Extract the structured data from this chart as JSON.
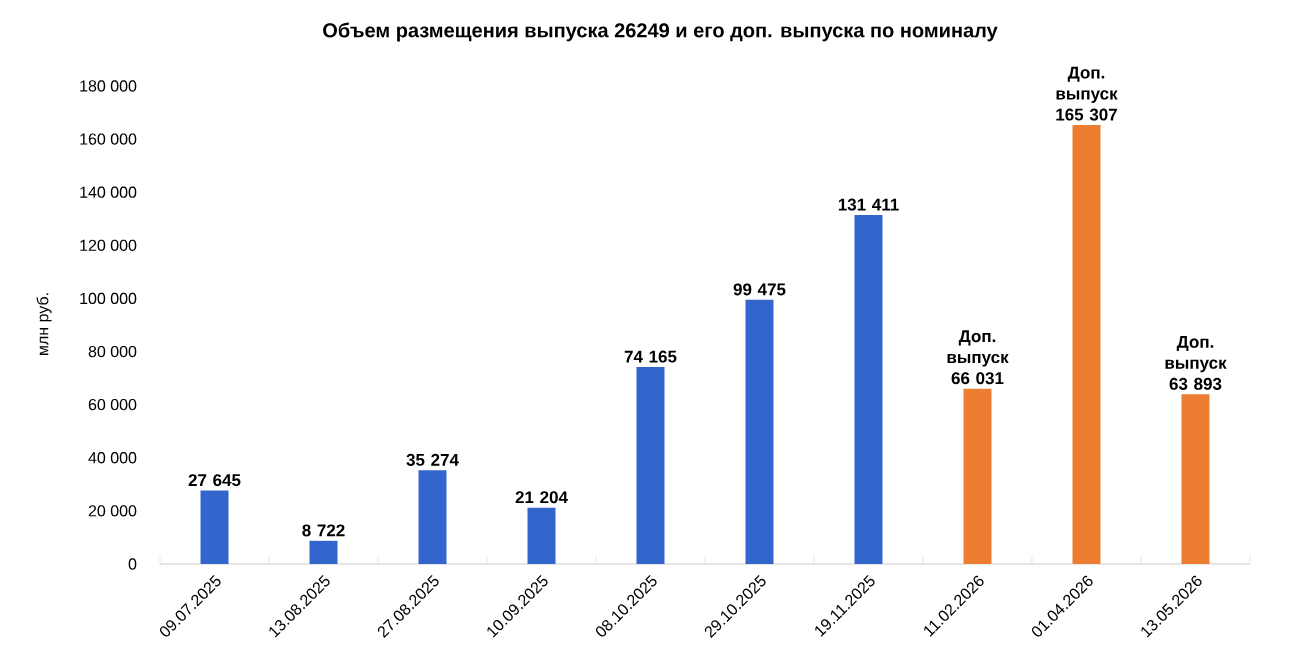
{
  "chart_data": {
    "type": "bar",
    "title": "Объем размещения выпуска 26249 и его доп. выпуска по номиналу",
    "ylabel": "млн руб.",
    "categories": [
      "09.07.2025",
      "13.08.2025",
      "27.08.2025",
      "10.09.2025",
      "08.10.2025",
      "29.10.2025",
      "19.11.2025",
      "11.02.2026",
      "01.04.2026",
      "13.05.2026"
    ],
    "values": [
      27645,
      8722,
      35274,
      21204,
      74165,
      99475,
      131411,
      66031,
      165307,
      63893
    ],
    "colors": [
      "#3366cc",
      "#3366cc",
      "#3366cc",
      "#3366cc",
      "#3366cc",
      "#3366cc",
      "#3366cc",
      "#ed7d31",
      "#ed7d31",
      "#ed7d31"
    ],
    "value_labels": [
      "27 645",
      "8 722",
      "35 274",
      "21 204",
      "74 165",
      "99 475",
      "131 411",
      "Доп. выпуск 66 031",
      "Доп. выпуск 165 307",
      "Доп. выпуск 63 893"
    ],
    "ylim": [
      0,
      180000
    ],
    "yticks": [
      {
        "value": 0,
        "label": "0"
      },
      {
        "value": 20000,
        "label": "20 000"
      },
      {
        "value": 40000,
        "label": "40 000"
      },
      {
        "value": 60000,
        "label": "60 000"
      },
      {
        "value": 80000,
        "label": "80 000"
      },
      {
        "value": 100000,
        "label": "100 000"
      },
      {
        "value": 120000,
        "label": "120 000"
      },
      {
        "value": 140000,
        "label": "140 000"
      },
      {
        "value": 160000,
        "label": "160 000"
      },
      {
        "value": 180000,
        "label": "180 000"
      }
    ]
  }
}
